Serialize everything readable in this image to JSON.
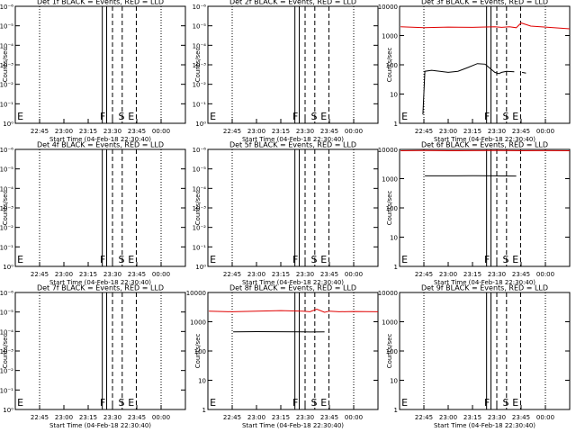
{
  "chart_data": [
    {
      "type": "line",
      "title": "Det 1f BLACK = Events, RED = LLD",
      "ylabel": "Counts/sec",
      "xlabel": "Start Time (04-Feb-18 22:30:40)",
      "x_ticks": [
        "22:45",
        "23:00",
        "23:15",
        "23:30",
        "23:45",
        "00:00"
      ],
      "y_scale": "log",
      "y_ticks": [
        "10⁰",
        "10⁻¹",
        "10⁻²",
        "10⁻³",
        "10⁻⁴",
        "10⁻⁵",
        "10⁻⁶"
      ],
      "markers": [
        "E",
        "F",
        "S",
        "E"
      ],
      "series": []
    },
    {
      "type": "line",
      "title": "Det 2f BLACK = Events, RED = LLD",
      "ylabel": "Counts/sec",
      "xlabel": "Start Time (04-Feb-18 22:30:40)",
      "x_ticks": [
        "22:45",
        "23:00",
        "23:15",
        "23:30",
        "23:45",
        "00:00"
      ],
      "y_scale": "log",
      "y_ticks": [
        "10⁰",
        "10⁻¹",
        "10⁻²",
        "10⁻³",
        "10⁻⁴",
        "10⁻⁵",
        "10⁻⁶"
      ],
      "markers": [
        "E",
        "F",
        "S",
        "E"
      ],
      "series": []
    },
    {
      "type": "line",
      "title": "Det 3f BLACK = Events, RED = LLD",
      "ylabel": "Counts/sec",
      "xlabel": "Start Time (04-Feb-18 22:30:40)",
      "x_ticks": [
        "22:45",
        "23:00",
        "23:15",
        "23:30",
        "23:45",
        "00:00"
      ],
      "y_scale": "log",
      "y_ticks": [
        "1",
        "10",
        "100",
        "1000",
        "10000"
      ],
      "ylim": [
        1,
        10000
      ],
      "markers": [
        "E",
        "F",
        "S",
        "E"
      ],
      "series": [
        {
          "color": "#000000",
          "x": [
            22.74,
            22.76,
            22.83,
            23.0,
            23.1,
            23.2,
            23.3,
            23.38,
            23.48,
            23.52,
            23.55,
            23.6,
            23.68,
            23.74,
            23.76,
            23.8
          ],
          "y": [
            2,
            60,
            65,
            55,
            60,
            80,
            110,
            105,
            55,
            50,
            55,
            60,
            58,
            null,
            55,
            52
          ]
        },
        {
          "color": "#e00000",
          "x": [
            22.51,
            22.75,
            23.0,
            23.25,
            23.48,
            23.55,
            23.63,
            23.7,
            23.75,
            23.85,
            24.0,
            24.25
          ],
          "y": [
            2000,
            1850,
            1950,
            1900,
            2000,
            1900,
            2000,
            1850,
            2700,
            2100,
            1950,
            1700
          ]
        }
      ]
    },
    {
      "type": "line",
      "title": "Det 4f BLACK = Events, RED = LLD",
      "ylabel": "Counts/sec",
      "xlabel": "Start Time (04-Feb-18 22:30:40)",
      "x_ticks": [
        "22:45",
        "23:00",
        "23:15",
        "23:30",
        "23:45",
        "00:00"
      ],
      "y_scale": "log",
      "y_ticks": [
        "10⁰",
        "10⁻¹",
        "10⁻²",
        "10⁻³",
        "10⁻⁴",
        "10⁻⁵",
        "10⁻⁶"
      ],
      "markers": [
        "E",
        "F",
        "S",
        "E"
      ],
      "series": []
    },
    {
      "type": "line",
      "title": "Det 5f BLACK = Events, RED = LLD",
      "ylabel": "Counts/sec",
      "xlabel": "Start Time (04-Feb-18 22:30:40)",
      "x_ticks": [
        "22:45",
        "23:00",
        "23:15",
        "23:30",
        "23:45",
        "00:00"
      ],
      "y_scale": "log",
      "y_ticks": [
        "10⁰",
        "10⁻¹",
        "10⁻²",
        "10⁻³",
        "10⁻⁴",
        "10⁻⁵",
        "10⁻⁶"
      ],
      "markers": [
        "E",
        "F",
        "S",
        "E"
      ],
      "series": []
    },
    {
      "type": "line",
      "title": "Det 6f BLACK = Events, RED = LLD",
      "ylabel": "Counts/sec",
      "xlabel": "Start Time (04-Feb-18 22:30:40)",
      "x_ticks": [
        "22:45",
        "23:00",
        "23:15",
        "23:30",
        "23:45",
        "00:00"
      ],
      "y_scale": "log",
      "y_ticks": [
        "1",
        "10",
        "100",
        "1000",
        "10000"
      ],
      "ylim": [
        1,
        10000
      ],
      "markers": [
        "E",
        "F",
        "S",
        "E"
      ],
      "series": [
        {
          "color": "#000000",
          "x": [
            22.76,
            23.0,
            23.25,
            23.48,
            23.55,
            23.7,
            23.76,
            23.8
          ],
          "y": [
            1250,
            1250,
            1260,
            1250,
            1240,
            1230,
            null,
            1200
          ]
        },
        {
          "color": "#e00000",
          "x": [
            22.51,
            22.75,
            23.0,
            23.25,
            23.5,
            23.75,
            24.0,
            24.25
          ],
          "y": [
            9000,
            9100,
            9000,
            9050,
            9100,
            9000,
            9050,
            9000
          ]
        }
      ]
    },
    {
      "type": "line",
      "title": "Det 7f BLACK = Events, RED = LLD",
      "ylabel": "Counts/sec",
      "xlabel": "Start Time (04-Feb-18 22:30:40)",
      "x_ticks": [
        "22:45",
        "23:00",
        "23:15",
        "23:30",
        "23:45",
        "00:00"
      ],
      "y_scale": "log",
      "y_ticks": [
        "10⁰",
        "10⁻¹",
        "10⁻²",
        "10⁻³",
        "10⁻⁴",
        "10⁻⁵",
        "10⁻⁶"
      ],
      "markers": [
        "E",
        "F",
        "S",
        "E"
      ],
      "series": []
    },
    {
      "type": "line",
      "title": "Det 8f BLACK = Events, RED = LLD",
      "ylabel": "Counts/sec",
      "xlabel": "Start Time (04-Feb-18 22:30:40)",
      "x_ticks": [
        "22:45",
        "23:00",
        "23:15",
        "23:30",
        "23:45",
        "00:00"
      ],
      "y_scale": "log",
      "y_ticks": [
        "1",
        "10",
        "100",
        "1000",
        "10000"
      ],
      "ylim": [
        1,
        10000
      ],
      "markers": [
        "E",
        "F",
        "S",
        "E"
      ],
      "series": [
        {
          "color": "#000000",
          "x": [
            22.76,
            23.0,
            23.25,
            23.48,
            23.55,
            23.7,
            23.76,
            23.8
          ],
          "y": [
            450,
            460,
            455,
            450,
            445,
            450,
            null,
            420
          ]
        },
        {
          "color": "#e00000",
          "x": [
            22.51,
            22.75,
            23.0,
            23.25,
            23.48,
            23.55,
            23.62,
            23.7,
            23.75,
            23.85,
            24.0,
            24.25
          ],
          "y": [
            2300,
            2200,
            2300,
            2400,
            2300,
            2200,
            2700,
            2100,
            2300,
            2200,
            2250,
            2200
          ]
        }
      ]
    },
    {
      "type": "line",
      "title": "Det 9f BLACK = Events, RED = LLD",
      "ylabel": "Counts/sec",
      "xlabel": "Start Time (04-Feb-18 22:30:40)",
      "x_ticks": [
        "22:45",
        "23:00",
        "23:15",
        "23:30",
        "23:45",
        "00:00"
      ],
      "y_scale": "log",
      "y_ticks": [
        "1",
        "10",
        "100",
        "1000",
        "10000"
      ],
      "ylim": [
        1,
        10000
      ],
      "markers": [
        "E",
        "F",
        "S",
        "E"
      ],
      "series": []
    }
  ]
}
